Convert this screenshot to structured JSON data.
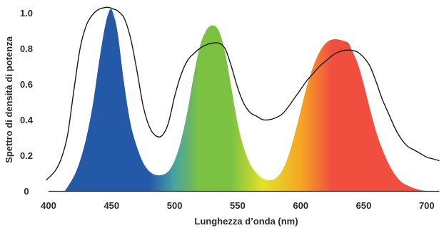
{
  "chart_data": {
    "type": "area",
    "title": "",
    "xlabel": "Lunghezza d’onda (nm)",
    "ylabel": "Spettro di densità di potenza",
    "xlim": [
      400,
      710
    ],
    "ylim": [
      0,
      1.0
    ],
    "x_ticks": [
      "400",
      "450",
      "500",
      "550",
      "600",
      "650",
      "700"
    ],
    "y_ticks": [
      "0",
      "0.2",
      "0.4",
      "0.6",
      "0.8",
      "1.0"
    ],
    "grid": false,
    "legend": "none",
    "colors": {
      "blue": "#2459a8",
      "cyan": "#4aa3a0",
      "green": "#7cc242",
      "yellow": "#e2e227",
      "orange": "#f5a623",
      "red": "#f04e3e",
      "line": "#1a1a1a",
      "axis": "#2b2b2b"
    },
    "series": [
      {
        "kind": "filled",
        "x": [
          413,
          420,
          425,
          430,
          435,
          440,
          445,
          449,
          452,
          455,
          460,
          465,
          470,
          475,
          480,
          485,
          490,
          495,
          500,
          505,
          510,
          515,
          520,
          525,
          530,
          535,
          540,
          545,
          550,
          555,
          560,
          565,
          570,
          575,
          580,
          585,
          590,
          595,
          600,
          605,
          610,
          615,
          620,
          625,
          630,
          635,
          638,
          640,
          645,
          650,
          655,
          660,
          665,
          670,
          675,
          680,
          685,
          690,
          695,
          700,
          705
        ],
        "y": [
          0.0,
          0.08,
          0.17,
          0.3,
          0.48,
          0.72,
          0.93,
          1.02,
          0.98,
          0.88,
          0.6,
          0.38,
          0.25,
          0.16,
          0.11,
          0.09,
          0.09,
          0.11,
          0.17,
          0.28,
          0.44,
          0.64,
          0.81,
          0.9,
          0.93,
          0.9,
          0.78,
          0.58,
          0.38,
          0.24,
          0.15,
          0.1,
          0.07,
          0.06,
          0.07,
          0.11,
          0.19,
          0.31,
          0.45,
          0.59,
          0.7,
          0.78,
          0.83,
          0.85,
          0.85,
          0.84,
          0.83,
          0.8,
          0.72,
          0.6,
          0.46,
          0.33,
          0.23,
          0.15,
          0.09,
          0.05,
          0.03,
          0.015,
          0.005,
          0.0,
          0.0
        ]
      },
      {
        "kind": "line",
        "x": [
          398,
          405,
          410,
          415,
          420,
          425,
          430,
          435,
          440,
          445,
          448,
          452,
          455,
          460,
          465,
          470,
          475,
          480,
          485,
          490,
          495,
          500,
          505,
          510,
          515,
          520,
          525,
          530,
          535,
          540,
          545,
          550,
          555,
          560,
          565,
          570,
          575,
          580,
          585,
          590,
          595,
          600,
          605,
          610,
          615,
          620,
          625,
          630,
          635,
          640,
          645,
          650,
          655,
          660,
          665,
          670,
          675,
          680,
          685,
          690,
          695,
          700,
          705,
          710
        ],
        "y": [
          0.06,
          0.11,
          0.18,
          0.31,
          0.56,
          0.8,
          0.93,
          0.99,
          1.02,
          1.03,
          1.03,
          1.02,
          1.01,
          0.97,
          0.86,
          0.68,
          0.48,
          0.36,
          0.31,
          0.31,
          0.38,
          0.53,
          0.65,
          0.73,
          0.77,
          0.8,
          0.82,
          0.83,
          0.83,
          0.8,
          0.7,
          0.58,
          0.49,
          0.44,
          0.42,
          0.4,
          0.4,
          0.41,
          0.43,
          0.47,
          0.52,
          0.57,
          0.62,
          0.66,
          0.7,
          0.73,
          0.76,
          0.78,
          0.79,
          0.79,
          0.78,
          0.75,
          0.7,
          0.61,
          0.51,
          0.43,
          0.35,
          0.29,
          0.25,
          0.23,
          0.21,
          0.19,
          0.18,
          0.17
        ]
      }
    ]
  }
}
